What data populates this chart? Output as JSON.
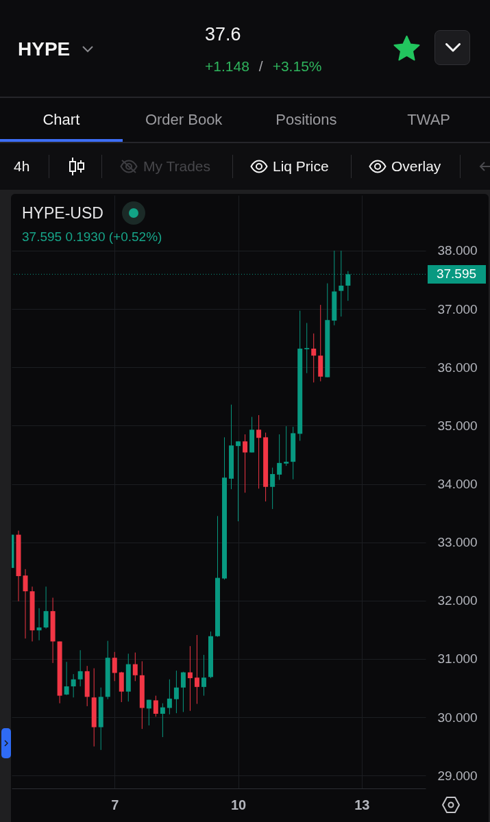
{
  "chart_data": {
    "type": "candlestick",
    "title": "HYPE-USD",
    "subtitle": "37.595 0.1930 (+0.52%)",
    "annotations": [
      "HYPE",
      "37.6",
      "+1.148",
      "/",
      "+3.15%",
      "Chart",
      "Order Book",
      "Positions",
      "TWAP",
      "4h",
      "My Trades",
      "Liq Price",
      "Overlay"
    ],
    "x": [
      4.5,
      4.6667,
      4.8333,
      5,
      5.1667,
      5.3333,
      5.5,
      5.6667,
      5.8333,
      6,
      6.1667,
      6.3333,
      6.5,
      6.6667,
      6.8333,
      7,
      7.1667,
      7.3333,
      7.5,
      7.6667,
      7.8333,
      8,
      8.1667,
      8.3333,
      8.5,
      8.6667,
      8.8333,
      9,
      9.1667,
      9.3333,
      9.5,
      9.6667,
      9.8333,
      10,
      10.1667,
      10.3333,
      10.5,
      10.6667,
      10.8333,
      11,
      11.1667,
      11.3333,
      11.5,
      11.6667,
      11.8333,
      12,
      12.1667,
      12.3333,
      12.5,
      12.6667
    ],
    "ohlc": [
      [
        32.56,
        33.13,
        32.56,
        33.13
      ],
      [
        33.13,
        33.2,
        31.99,
        32.42
      ],
      [
        32.43,
        32.54,
        31.35,
        32.16
      ],
      [
        32.16,
        32.24,
        31.3,
        31.49
      ],
      [
        31.49,
        31.87,
        31.32,
        31.54
      ],
      [
        31.54,
        32.24,
        31.52,
        31.82
      ],
      [
        31.82,
        32.05,
        30.93,
        31.3
      ],
      [
        31.3,
        31.3,
        30.24,
        30.37
      ],
      [
        30.39,
        30.95,
        30.38,
        30.53
      ],
      [
        30.53,
        30.74,
        30.34,
        30.65
      ],
      [
        30.65,
        31.15,
        30.53,
        30.79
      ],
      [
        30.79,
        30.88,
        30.19,
        30.35
      ],
      [
        30.34,
        30.84,
        29.5,
        29.83
      ],
      [
        29.83,
        30.51,
        29.44,
        30.35
      ],
      [
        30.35,
        31.31,
        30.31,
        31.02
      ],
      [
        31.02,
        31.12,
        30.62,
        30.76
      ],
      [
        30.77,
        30.78,
        30.26,
        30.44
      ],
      [
        30.44,
        31.09,
        30.27,
        30.91
      ],
      [
        30.91,
        31.11,
        30.62,
        30.72
      ],
      [
        30.72,
        30.96,
        29.8,
        30.16
      ],
      [
        30.15,
        30.3,
        29.86,
        30.3
      ],
      [
        30.29,
        30.37,
        30.01,
        30.06
      ],
      [
        30.06,
        30.24,
        29.66,
        30.17
      ],
      [
        30.16,
        30.65,
        30.05,
        30.32
      ],
      [
        30.31,
        30.8,
        30.07,
        30.51
      ],
      [
        30.51,
        30.78,
        30.09,
        30.77
      ],
      [
        30.77,
        31.22,
        30.11,
        30.67
      ],
      [
        30.68,
        31.41,
        30.23,
        30.52
      ],
      [
        30.52,
        31.07,
        30.37,
        30.68
      ],
      [
        30.69,
        31.47,
        30.67,
        31.39
      ],
      [
        31.39,
        33.45,
        31.38,
        32.39
      ],
      [
        32.38,
        34.8,
        32.36,
        34.11
      ],
      [
        34.09,
        35.36,
        33.91,
        34.66
      ],
      [
        34.65,
        34.73,
        33.36,
        34.73
      ],
      [
        34.73,
        34.85,
        33.85,
        34.54
      ],
      [
        34.54,
        35.15,
        34.54,
        34.93
      ],
      [
        34.93,
        35.18,
        33.92,
        34.79
      ],
      [
        34.8,
        34.88,
        33.7,
        33.95
      ],
      [
        33.95,
        34.28,
        33.57,
        34.17
      ],
      [
        34.16,
        34.85,
        34.07,
        34.36
      ],
      [
        34.35,
        34.99,
        34.31,
        34.38
      ],
      [
        34.38,
        34.98,
        34.08,
        34.87
      ],
      [
        34.86,
        36.97,
        34.74,
        36.32
      ],
      [
        36.31,
        36.76,
        35.9,
        36.33
      ],
      [
        36.32,
        36.58,
        35.74,
        36.2
      ],
      [
        36.2,
        37.07,
        35.76,
        35.84
      ],
      [
        35.83,
        37.44,
        35.83,
        36.81
      ],
      [
        36.8,
        38.0,
        36.72,
        37.3
      ],
      [
        37.31,
        38.0,
        36.87,
        37.4
      ],
      [
        37.4,
        37.65,
        37.14,
        37.595
      ]
    ],
    "colors": [
      "#089981",
      "#f23645",
      "#f23645",
      "#f23645",
      "#089981",
      "#089981",
      "#f23645",
      "#f23645",
      "#089981",
      "#089981",
      "#089981",
      "#f23645",
      "#f23645",
      "#089981",
      "#089981",
      "#f23645",
      "#f23645",
      "#089981",
      "#f23645",
      "#f23645",
      "#089981",
      "#f23645",
      "#089981",
      "#089981",
      "#089981",
      "#089981",
      "#f23645",
      "#f23645",
      "#089981",
      "#089981",
      "#089981",
      "#089981",
      "#089981",
      "#089981",
      "#f23645",
      "#089981",
      "#f23645",
      "#f23645",
      "#089981",
      "#089981",
      "#089981",
      "#089981",
      "#089981",
      "#089981",
      "#f23645",
      "#f23645",
      "#089981",
      "#089981",
      "#089981",
      "#089981"
    ],
    "xlim": [
      4.5,
      14.55
    ],
    "xticks": [
      7,
      10,
      13
    ],
    "ylim": [
      28.78,
      38.95
    ],
    "yticks": [
      {
        "value": 29,
        "label": "29.000"
      },
      {
        "value": 30,
        "label": "30.000"
      },
      {
        "value": 31,
        "label": "31.000"
      },
      {
        "value": 32,
        "label": "32.000"
      },
      {
        "value": 33,
        "label": "33.000"
      },
      {
        "value": 34,
        "label": "34.000"
      },
      {
        "value": 35,
        "label": "35.000"
      },
      {
        "value": 36,
        "label": "36.000"
      },
      {
        "value": 37,
        "label": "37.000"
      },
      {
        "value": 38,
        "label": "38.000"
      }
    ],
    "grid": true,
    "ref_lines": [
      {
        "axis": "y",
        "value": 37.595,
        "label": "37.595",
        "color": "#089981",
        "line_style": "dotted"
      }
    ]
  }
}
